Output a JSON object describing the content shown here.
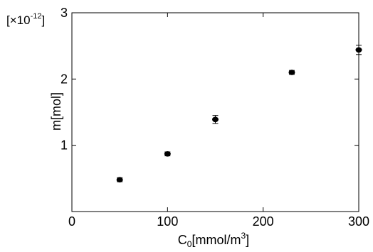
{
  "chart_data": {
    "type": "scatter",
    "title": "",
    "xlabel": "C",
    "xlabel_subscript": "0",
    "xlabel_unit_prefix": "[mmol/m",
    "xlabel_unit_power": "3",
    "xlabel_unit_suffix": "]",
    "ylabel": "m[mol]",
    "y_multiplier_prefix": "[×10",
    "y_multiplier_power": "-12",
    "y_multiplier_suffix": "]",
    "xlim": [
      0,
      300
    ],
    "ylim": [
      0,
      3
    ],
    "x_ticks": [
      0,
      100,
      200,
      300
    ],
    "y_ticks": [
      1,
      2,
      3
    ],
    "grid": false,
    "series": [
      {
        "x": [
          50,
          100,
          150,
          230,
          300
        ],
        "y": [
          0.48,
          0.87,
          1.39,
          2.1,
          2.44
        ],
        "error": [
          0.03,
          0.03,
          0.06,
          0.03,
          0.07
        ]
      }
    ],
    "colors": {
      "marker": "#000000",
      "axis": "#000000"
    }
  }
}
